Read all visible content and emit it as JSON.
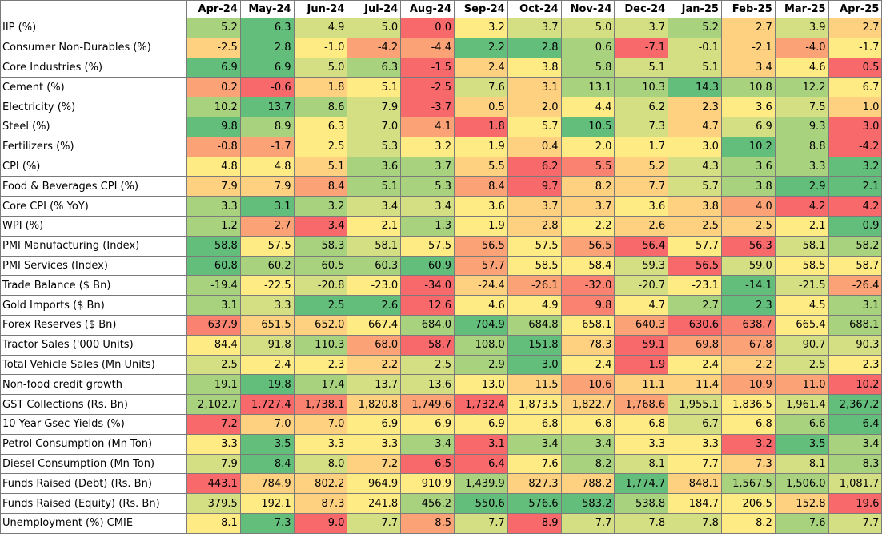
{
  "columns": [
    "Apr-24",
    "May-24",
    "Jun-24",
    "Jul-24",
    "Aug-24",
    "Sep-24",
    "Oct-24",
    "Nov-24",
    "Dec-24",
    "Jan-25",
    "Feb-25",
    "Mar-25",
    "Apr-25"
  ],
  "colors": {
    "dark_green": "#63be7b",
    "mid_green": "#a9d27f",
    "light_green": "#d3df82",
    "yellow": "#ffeb84",
    "light_orange": "#fdd17f",
    "orange": "#fba276",
    "dark_orange": "#f98370",
    "red": "#f8696b"
  },
  "rows": [
    {
      "label": " IIP (%)",
      "values": [
        "5.2",
        "6.3",
        "4.9",
        "5.0",
        "0.0",
        "3.2",
        "3.7",
        "5.0",
        "3.7",
        "5.2",
        "2.7",
        "3.9",
        "2.7"
      ],
      "colors": [
        "mid_green",
        "dark_green",
        "light_green",
        "light_green",
        "red",
        "yellow",
        "light_green",
        "light_green",
        "light_green",
        "mid_green",
        "light_orange",
        "light_green",
        "light_orange"
      ]
    },
    {
      "label": "Consumer Non-Durables (%)",
      "values": [
        "-2.5",
        "2.8",
        "-1.0",
        "-4.2",
        "-4.4",
        "2.2",
        "2.8",
        "0.6",
        "-7.1",
        "-0.1",
        "-2.1",
        "-4.0",
        "-1.7"
      ],
      "colors": [
        "light_orange",
        "dark_green",
        "yellow",
        "orange",
        "orange",
        "dark_green",
        "dark_green",
        "mid_green",
        "red",
        "light_green",
        "light_orange",
        "orange",
        "yellow"
      ]
    },
    {
      "label": "Core Industries (%)",
      "values": [
        "6.9",
        "6.9",
        "5.0",
        "6.3",
        "-1.5",
        "2.4",
        "3.8",
        "5.8",
        "5.1",
        "5.1",
        "3.4",
        "4.6",
        "0.5"
      ],
      "colors": [
        "dark_green",
        "dark_green",
        "light_green",
        "mid_green",
        "red",
        "light_orange",
        "yellow",
        "mid_green",
        "light_green",
        "light_green",
        "light_orange",
        "yellow",
        "red"
      ]
    },
    {
      "label": "Cement (%)",
      "values": [
        "0.2",
        "-0.6",
        "1.8",
        "5.1",
        "-2.5",
        "7.6",
        "3.1",
        "13.1",
        "10.3",
        "14.3",
        "10.8",
        "12.2",
        "6.7"
      ],
      "colors": [
        "orange",
        "red",
        "light_orange",
        "yellow",
        "red",
        "light_green",
        "light_orange",
        "mid_green",
        "mid_green",
        "dark_green",
        "mid_green",
        "mid_green",
        "yellow"
      ]
    },
    {
      "label": "Electricity (%)",
      "values": [
        "10.2",
        "13.7",
        "8.6",
        "7.9",
        "-3.7",
        "0.5",
        "2.0",
        "4.4",
        "6.2",
        "2.3",
        "3.6",
        "7.5",
        "1.0"
      ],
      "colors": [
        "mid_green",
        "dark_green",
        "mid_green",
        "light_green",
        "red",
        "light_orange",
        "light_orange",
        "yellow",
        "light_green",
        "light_orange",
        "yellow",
        "light_green",
        "light_orange"
      ]
    },
    {
      "label": "Steel (%)",
      "values": [
        "9.8",
        "8.9",
        "6.3",
        "7.0",
        "4.1",
        "1.8",
        "5.7",
        "10.5",
        "7.3",
        "4.7",
        "6.9",
        "9.3",
        "3.0"
      ],
      "colors": [
        "dark_green",
        "mid_green",
        "yellow",
        "light_green",
        "orange",
        "red",
        "yellow",
        "dark_green",
        "light_green",
        "light_orange",
        "light_green",
        "mid_green",
        "red"
      ]
    },
    {
      "label": "Fertilizers (%)",
      "values": [
        "-0.8",
        "-1.7",
        "2.5",
        "5.3",
        "3.2",
        "1.9",
        "0.4",
        "2.0",
        "1.7",
        "3.0",
        "10.2",
        "8.8",
        "-4.2"
      ],
      "colors": [
        "orange",
        "orange",
        "yellow",
        "light_green",
        "yellow",
        "yellow",
        "light_orange",
        "yellow",
        "yellow",
        "yellow",
        "dark_green",
        "mid_green",
        "red"
      ]
    },
    {
      "label": "CPI (%)",
      "values": [
        "4.8",
        "4.8",
        "5.1",
        "3.6",
        "3.7",
        "5.5",
        "6.2",
        "5.5",
        "5.2",
        "4.3",
        "3.6",
        "3.3",
        "3.2"
      ],
      "colors": [
        "yellow",
        "yellow",
        "light_orange",
        "mid_green",
        "mid_green",
        "light_orange",
        "red",
        "dark_orange",
        "light_orange",
        "light_green",
        "mid_green",
        "mid_green",
        "dark_green"
      ]
    },
    {
      "label": "Food & Beverages CPI (%)",
      "values": [
        "7.9",
        "7.9",
        "8.4",
        "5.1",
        "5.3",
        "8.4",
        "9.7",
        "8.2",
        "7.7",
        "5.7",
        "3.8",
        "2.9",
        "2.1"
      ],
      "colors": [
        "light_orange",
        "light_orange",
        "orange",
        "mid_green",
        "mid_green",
        "orange",
        "red",
        "light_orange",
        "light_orange",
        "light_green",
        "mid_green",
        "dark_green",
        "dark_green"
      ]
    },
    {
      "label": "Core CPI (% YoY)",
      "values": [
        "3.3",
        "3.1",
        "3.2",
        "3.4",
        "3.4",
        "3.6",
        "3.7",
        "3.7",
        "3.6",
        "3.8",
        "4.0",
        "4.2",
        "4.2"
      ],
      "colors": [
        "mid_green",
        "dark_green",
        "mid_green",
        "light_green",
        "light_green",
        "yellow",
        "light_orange",
        "light_orange",
        "yellow",
        "light_orange",
        "orange",
        "red",
        "red"
      ]
    },
    {
      "label": "WPI (%)",
      "values": [
        "1.2",
        "2.7",
        "3.4",
        "2.1",
        "1.3",
        "1.9",
        "2.8",
        "2.2",
        "2.6",
        "2.5",
        "2.5",
        "2.1",
        "0.9"
      ],
      "colors": [
        "mid_green",
        "orange",
        "red",
        "yellow",
        "mid_green",
        "yellow",
        "light_orange",
        "yellow",
        "light_orange",
        "light_orange",
        "light_orange",
        "yellow",
        "dark_green"
      ]
    },
    {
      "label": "PMI Manufacturing (Index)",
      "values": [
        "58.8",
        "57.5",
        "58.3",
        "58.1",
        "57.5",
        "56.5",
        "57.5",
        "56.5",
        "56.4",
        "57.7",
        "56.3",
        "58.1",
        "58.2"
      ],
      "colors": [
        "dark_green",
        "yellow",
        "mid_green",
        "light_green",
        "yellow",
        "orange",
        "yellow",
        "orange",
        "red",
        "yellow",
        "red",
        "light_green",
        "mid_green"
      ]
    },
    {
      "label": "PMI Services (Index)",
      "values": [
        "60.8",
        "60.2",
        "60.5",
        "60.3",
        "60.9",
        "57.7",
        "58.5",
        "58.4",
        "59.3",
        "56.5",
        "59.0",
        "58.5",
        "58.7"
      ],
      "colors": [
        "dark_green",
        "mid_green",
        "mid_green",
        "mid_green",
        "dark_green",
        "orange",
        "yellow",
        "yellow",
        "light_green",
        "red",
        "light_green",
        "yellow",
        "yellow"
      ]
    },
    {
      "label": "Trade Balance ($ Bn)",
      "values": [
        "-19.4",
        "-22.5",
        "-20.8",
        "-23.0",
        "-34.0",
        "-24.4",
        "-26.1",
        "-32.0",
        "-20.7",
        "-23.1",
        "-14.1",
        "-21.5",
        "-26.4"
      ],
      "colors": [
        "mid_green",
        "yellow",
        "light_green",
        "yellow",
        "red",
        "light_orange",
        "orange",
        "dark_orange",
        "light_green",
        "yellow",
        "dark_green",
        "light_green",
        "orange"
      ]
    },
    {
      "label": "Gold Imports ($ Bn)",
      "values": [
        "3.1",
        "3.3",
        "2.5",
        "2.6",
        "12.6",
        "4.6",
        "4.9",
        "9.8",
        "4.7",
        "2.7",
        "2.3",
        "4.5",
        "3.1"
      ],
      "colors": [
        "mid_green",
        "light_green",
        "dark_green",
        "dark_green",
        "red",
        "yellow",
        "yellow",
        "dark_orange",
        "yellow",
        "mid_green",
        "dark_green",
        "yellow",
        "mid_green"
      ]
    },
    {
      "label": "Forex Reserves ($ Bn)",
      "values": [
        "637.9",
        "651.5",
        "652.0",
        "667.4",
        "684.0",
        "704.9",
        "684.8",
        "658.1",
        "640.3",
        "630.6",
        "638.7",
        "665.4",
        "688.1"
      ],
      "colors": [
        "dark_orange",
        "light_orange",
        "light_orange",
        "yellow",
        "mid_green",
        "dark_green",
        "mid_green",
        "yellow",
        "orange",
        "red",
        "dark_orange",
        "yellow",
        "mid_green"
      ]
    },
    {
      "label": "Tractor Sales ('000 Units)",
      "values": [
        "84.4",
        "91.8",
        "110.3",
        "68.0",
        "58.7",
        "108.0",
        "151.8",
        "78.3",
        "59.1",
        "69.8",
        "67.8",
        "90.7",
        "90.3"
      ],
      "colors": [
        "yellow",
        "light_green",
        "mid_green",
        "orange",
        "red",
        "mid_green",
        "dark_green",
        "light_orange",
        "red",
        "orange",
        "orange",
        "light_green",
        "light_green"
      ]
    },
    {
      "label": "Total Vehicle Sales (Mn Units)",
      "values": [
        "2.5",
        "2.4",
        "2.3",
        "2.2",
        "2.5",
        "2.9",
        "3.0",
        "2.4",
        "1.9",
        "2.4",
        "2.2",
        "2.5",
        "2.3"
      ],
      "colors": [
        "light_green",
        "yellow",
        "yellow",
        "light_orange",
        "light_green",
        "mid_green",
        "dark_green",
        "yellow",
        "red",
        "yellow",
        "light_orange",
        "light_green",
        "yellow"
      ]
    },
    {
      "label": "Non-food credit growth",
      "values": [
        "19.1",
        "19.8",
        "17.4",
        "13.7",
        "13.6",
        "13.0",
        "11.5",
        "10.6",
        "11.1",
        "11.4",
        "10.9",
        "11.0",
        "10.2"
      ],
      "colors": [
        "mid_green",
        "dark_green",
        "mid_green",
        "light_green",
        "light_green",
        "yellow",
        "light_orange",
        "orange",
        "light_orange",
        "light_orange",
        "orange",
        "orange",
        "red"
      ]
    },
    {
      "label": "GST Collections (Rs. Bn)",
      "values": [
        "2,102.7",
        "1,727.4",
        "1,738.1",
        "1,820.8",
        "1,749.6",
        "1,732.4",
        "1,873.5",
        "1,822.7",
        "1,768.6",
        "1,955.1",
        "1,836.5",
        "1,961.4",
        "2,367.2"
      ],
      "colors": [
        "mid_green",
        "red",
        "dark_orange",
        "light_orange",
        "orange",
        "red",
        "yellow",
        "light_orange",
        "orange",
        "light_green",
        "yellow",
        "light_green",
        "dark_green"
      ]
    },
    {
      "label": "10 Year Gsec Yields (%)",
      "values": [
        "7.2",
        "7.0",
        "7.0",
        "6.9",
        "6.9",
        "6.9",
        "6.8",
        "6.8",
        "6.8",
        "6.7",
        "6.8",
        "6.6",
        "6.4"
      ],
      "colors": [
        "red",
        "light_orange",
        "light_orange",
        "yellow",
        "yellow",
        "yellow",
        "yellow",
        "yellow",
        "yellow",
        "light_green",
        "yellow",
        "mid_green",
        "dark_green"
      ]
    },
    {
      "label": "Petrol Consumption (Mn Ton)",
      "values": [
        "3.3",
        "3.5",
        "3.3",
        "3.3",
        "3.4",
        "3.1",
        "3.4",
        "3.4",
        "3.3",
        "3.3",
        "3.2",
        "3.5",
        "3.4"
      ],
      "colors": [
        "yellow",
        "dark_green",
        "yellow",
        "yellow",
        "mid_green",
        "red",
        "mid_green",
        "mid_green",
        "yellow",
        "yellow",
        "red",
        "dark_green",
        "mid_green"
      ]
    },
    {
      "label": "Diesel Consumption (Mn Ton)",
      "values": [
        "7.9",
        "8.4",
        "8.0",
        "7.2",
        "6.5",
        "6.4",
        "7.6",
        "8.2",
        "8.1",
        "7.7",
        "7.3",
        "8.1",
        "8.3"
      ],
      "colors": [
        "light_green",
        "dark_green",
        "light_green",
        "light_orange",
        "red",
        "red",
        "yellow",
        "mid_green",
        "light_green",
        "yellow",
        "light_orange",
        "light_green",
        "mid_green"
      ]
    },
    {
      "label": "Funds Raised (Debt) (Rs. Bn)",
      "values": [
        "443.1",
        "784.9",
        "802.2",
        "964.9",
        "910.9",
        "1,439.9",
        "827.3",
        "788.2",
        "1,774.7",
        "848.1",
        "1,567.5",
        "1,506.0",
        "1,081.7"
      ],
      "colors": [
        "red",
        "light_orange",
        "light_orange",
        "yellow",
        "yellow",
        "mid_green",
        "light_orange",
        "light_orange",
        "dark_green",
        "light_orange",
        "mid_green",
        "mid_green",
        "light_green"
      ]
    },
    {
      "label": "Funds Raised (Equity) (Rs. Bn)",
      "values": [
        "379.5",
        "192.1",
        "87.3",
        "241.8",
        "456.2",
        "550.6",
        "576.6",
        "583.2",
        "538.8",
        "184.7",
        "206.5",
        "152.8",
        "19.6"
      ],
      "colors": [
        "light_green",
        "yellow",
        "light_orange",
        "yellow",
        "mid_green",
        "dark_green",
        "dark_green",
        "dark_green",
        "mid_green",
        "yellow",
        "yellow",
        "light_orange",
        "red"
      ]
    },
    {
      "label": "Unemployment (%) CMIE",
      "values": [
        "8.1",
        "7.3",
        "9.0",
        "7.7",
        "8.5",
        "7.7",
        "8.9",
        "7.7",
        "7.8",
        "7.8",
        "8.2",
        "7.6",
        "7.7"
      ],
      "colors": [
        "yellow",
        "dark_green",
        "red",
        "light_green",
        "orange",
        "light_green",
        "red",
        "light_green",
        "light_green",
        "light_green",
        "yellow",
        "mid_green",
        "light_green"
      ]
    }
  ]
}
